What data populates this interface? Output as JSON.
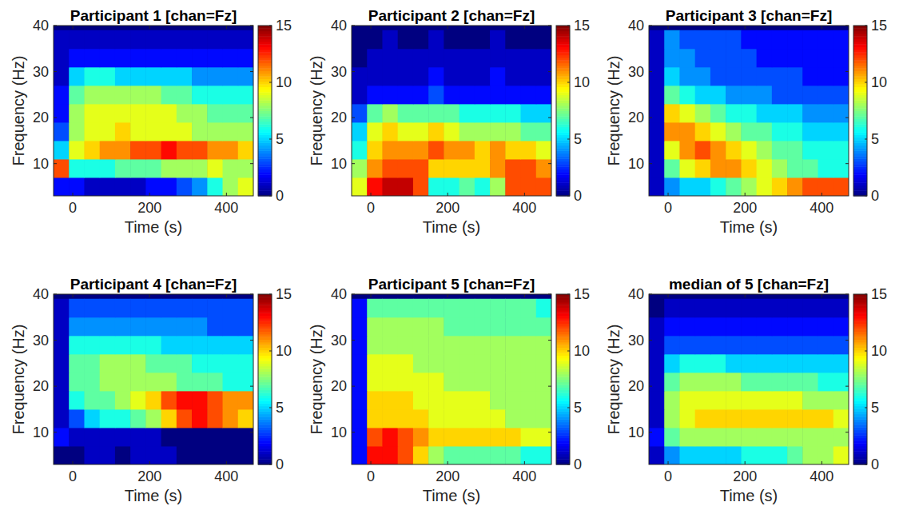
{
  "chart_data": [
    {
      "type": "heatmap",
      "title": "Participant 1 [chan=Fz]",
      "x_label": "Time (s)",
      "y_label": "Frequency (Hz)",
      "x": [
        -30,
        10,
        50,
        90,
        130,
        170,
        210,
        250,
        290,
        330,
        370,
        410,
        450
      ],
      "y": [
        5,
        9,
        13,
        17,
        21,
        25,
        29,
        33,
        37
      ],
      "values": [
        [
          2,
          2,
          1,
          1,
          1,
          1,
          2,
          2,
          3,
          4,
          6,
          8,
          9
        ],
        [
          12,
          6,
          6,
          6,
          7,
          7,
          7,
          8,
          8,
          8,
          9,
          8,
          8
        ],
        [
          5,
          9,
          10,
          11,
          11,
          12,
          12,
          13,
          12,
          12,
          11,
          11,
          10
        ],
        [
          3,
          8,
          9,
          9,
          10,
          9,
          9,
          9,
          9,
          8,
          8,
          8,
          8
        ],
        [
          2,
          8,
          9,
          9,
          9,
          9,
          9,
          9,
          8,
          8,
          7,
          7,
          7
        ],
        [
          2,
          7,
          8,
          8,
          8,
          8,
          8,
          7,
          7,
          6,
          6,
          6,
          6
        ],
        [
          1,
          5,
          6,
          6,
          5,
          5,
          5,
          5,
          5,
          4,
          4,
          4,
          4
        ],
        [
          1,
          2,
          2,
          2,
          2,
          2,
          2,
          2,
          2,
          2,
          2,
          2,
          2
        ],
        [
          1,
          1,
          1,
          1,
          1,
          1,
          1,
          1,
          1,
          1,
          1,
          1,
          1
        ]
      ],
      "xlim": [
        -50,
        470
      ],
      "ylim": [
        3,
        40
      ],
      "xticks": [
        0,
        200,
        400
      ],
      "yticks": [
        10,
        20,
        30,
        40
      ],
      "zlim": [
        0,
        15
      ],
      "zticks": [
        0,
        5,
        10,
        15
      ]
    },
    {
      "type": "heatmap",
      "title": "Participant 2 [chan=Fz]",
      "x_label": "Time (s)",
      "y_label": "Frequency (Hz)",
      "x": [
        -30,
        10,
        50,
        90,
        130,
        170,
        210,
        250,
        290,
        330,
        370,
        410,
        450
      ],
      "y": [
        5,
        9,
        13,
        17,
        21,
        25,
        29,
        33,
        37
      ],
      "values": [
        [
          9,
          13,
          14,
          14,
          12,
          6,
          6,
          7,
          6,
          8,
          12,
          12,
          12
        ],
        [
          8,
          11,
          12,
          12,
          12,
          10,
          10,
          10,
          10,
          11,
          12,
          12,
          11
        ],
        [
          6,
          10,
          11,
          11,
          11,
          12,
          11,
          11,
          10,
          11,
          10,
          10,
          9
        ],
        [
          5,
          9,
          10,
          9,
          9,
          10,
          9,
          8,
          8,
          8,
          8,
          7,
          7
        ],
        [
          3,
          7,
          8,
          7,
          7,
          7,
          7,
          6,
          6,
          6,
          6,
          5,
          5
        ],
        [
          1,
          2,
          2,
          2,
          2,
          3,
          2,
          2,
          2,
          2,
          2,
          2,
          2
        ],
        [
          1,
          1,
          1,
          1,
          1,
          2,
          1,
          1,
          1,
          2,
          1,
          1,
          1
        ],
        [
          0,
          1,
          1,
          1,
          1,
          1,
          1,
          1,
          1,
          1,
          1,
          1,
          1
        ],
        [
          0,
          0,
          1,
          0,
          0,
          1,
          0,
          0,
          0,
          1,
          0,
          0,
          0
        ]
      ],
      "xlim": [
        -50,
        470
      ],
      "ylim": [
        3,
        40
      ],
      "xticks": [
        0,
        200,
        400
      ],
      "yticks": [
        10,
        20,
        30,
        40
      ],
      "zlim": [
        0,
        15
      ],
      "zticks": [
        0,
        5,
        10,
        15
      ]
    },
    {
      "type": "heatmap",
      "title": "Participant 3 [chan=Fz]",
      "x_label": "Time (s)",
      "y_label": "Frequency (Hz)",
      "x": [
        -30,
        10,
        50,
        90,
        130,
        170,
        210,
        250,
        290,
        330,
        370,
        410,
        450
      ],
      "y": [
        5,
        9,
        13,
        17,
        21,
        25,
        29,
        33,
        37
      ],
      "values": [
        [
          1,
          4,
          5,
          5,
          6,
          7,
          8,
          9,
          10,
          11,
          12,
          12,
          12
        ],
        [
          1,
          7,
          9,
          10,
          11,
          11,
          10,
          9,
          8,
          7,
          7,
          6,
          6
        ],
        [
          1,
          9,
          11,
          12,
          11,
          10,
          9,
          8,
          7,
          7,
          6,
          6,
          6
        ],
        [
          1,
          11,
          11,
          10,
          9,
          8,
          7,
          7,
          6,
          6,
          5,
          5,
          5
        ],
        [
          1,
          10,
          9,
          8,
          7,
          6,
          6,
          5,
          5,
          5,
          4,
          4,
          4
        ],
        [
          1,
          7,
          6,
          5,
          5,
          4,
          4,
          4,
          3,
          3,
          3,
          3,
          3
        ],
        [
          1,
          5,
          4,
          4,
          3,
          3,
          3,
          3,
          3,
          3,
          2,
          2,
          2
        ],
        [
          1,
          4,
          4,
          3,
          3,
          3,
          3,
          2,
          2,
          2,
          2,
          2,
          2
        ],
        [
          1,
          4,
          3,
          3,
          3,
          3,
          2,
          2,
          2,
          2,
          2,
          2,
          2
        ]
      ],
      "xlim": [
        -50,
        470
      ],
      "ylim": [
        3,
        40
      ],
      "xticks": [
        0,
        200,
        400
      ],
      "yticks": [
        10,
        20,
        30,
        40
      ],
      "zlim": [
        0,
        15
      ],
      "zticks": [
        0,
        5,
        10,
        15
      ]
    },
    {
      "type": "heatmap",
      "title": "Participant 4 [chan=Fz]",
      "x_label": "Time (s)",
      "y_label": "Frequency (Hz)",
      "x": [
        -30,
        10,
        50,
        90,
        130,
        170,
        210,
        250,
        290,
        330,
        370,
        410,
        450
      ],
      "y": [
        5,
        9,
        13,
        17,
        21,
        25,
        29,
        33,
        37
      ],
      "values": [
        [
          0,
          0,
          1,
          1,
          0,
          1,
          1,
          1,
          0,
          0,
          0,
          0,
          0
        ],
        [
          2,
          1,
          1,
          1,
          1,
          1,
          1,
          0,
          0,
          0,
          0,
          0,
          0
        ],
        [
          1,
          3,
          5,
          6,
          6,
          7,
          8,
          10,
          12,
          13,
          12,
          11,
          10
        ],
        [
          1,
          6,
          7,
          7,
          8,
          9,
          10,
          12,
          13,
          13,
          12,
          11,
          11
        ],
        [
          1,
          7,
          7,
          8,
          8,
          8,
          8,
          8,
          7,
          7,
          7,
          6,
          6
        ],
        [
          1,
          7,
          7,
          8,
          8,
          8,
          7,
          7,
          7,
          6,
          6,
          6,
          6
        ],
        [
          1,
          6,
          6,
          6,
          6,
          6,
          6,
          5,
          5,
          5,
          5,
          5,
          5
        ],
        [
          1,
          4,
          4,
          4,
          4,
          4,
          4,
          4,
          4,
          4,
          3,
          3,
          3
        ],
        [
          1,
          3,
          3,
          3,
          3,
          3,
          3,
          3,
          3,
          3,
          3,
          3,
          3
        ]
      ],
      "xlim": [
        -50,
        470
      ],
      "ylim": [
        3,
        40
      ],
      "xticks": [
        0,
        200,
        400
      ],
      "yticks": [
        10,
        20,
        30,
        40
      ],
      "zlim": [
        0,
        15
      ],
      "zticks": [
        0,
        5,
        10,
        15
      ]
    },
    {
      "type": "heatmap",
      "title": "Participant 5 [chan=Fz]",
      "x_label": "Time (s)",
      "y_label": "Frequency (Hz)",
      "x": [
        -30,
        10,
        50,
        90,
        130,
        170,
        210,
        250,
        290,
        330,
        370,
        410,
        450
      ],
      "y": [
        5,
        9,
        13,
        17,
        21,
        25,
        29,
        33,
        37
      ],
      "values": [
        [
          2,
          13,
          13,
          12,
          10,
          8,
          7,
          7,
          7,
          7,
          7,
          6,
          6
        ],
        [
          2,
          12,
          13,
          12,
          11,
          10,
          10,
          10,
          10,
          10,
          10,
          9,
          9
        ],
        [
          2,
          10,
          10,
          10,
          10,
          9,
          9,
          9,
          9,
          9,
          8,
          8,
          8
        ],
        [
          2,
          10,
          10,
          10,
          9,
          9,
          9,
          9,
          9,
          8,
          8,
          8,
          8
        ],
        [
          2,
          9,
          9,
          9,
          9,
          9,
          8,
          8,
          8,
          8,
          8,
          8,
          8
        ],
        [
          2,
          9,
          9,
          9,
          8,
          8,
          8,
          8,
          8,
          8,
          8,
          8,
          8
        ],
        [
          2,
          8,
          8,
          8,
          8,
          8,
          8,
          8,
          8,
          8,
          8,
          8,
          8
        ],
        [
          2,
          8,
          8,
          8,
          8,
          8,
          7,
          7,
          7,
          7,
          7,
          7,
          7
        ],
        [
          2,
          7,
          7,
          7,
          7,
          7,
          7,
          7,
          7,
          7,
          7,
          7,
          6
        ]
      ],
      "xlim": [
        -50,
        470
      ],
      "ylim": [
        3,
        40
      ],
      "xticks": [
        0,
        200,
        400
      ],
      "yticks": [
        10,
        20,
        30,
        40
      ],
      "zlim": [
        0,
        15
      ],
      "zticks": [
        0,
        5,
        10,
        15
      ]
    },
    {
      "type": "heatmap",
      "title": "median of 5 [chan=Fz]",
      "x_label": "Time (s)",
      "y_label": "Frequency (Hz)",
      "x": [
        -30,
        10,
        50,
        90,
        130,
        170,
        210,
        250,
        290,
        330,
        370,
        410,
        450
      ],
      "y": [
        5,
        9,
        13,
        17,
        21,
        25,
        29,
        33,
        37
      ],
      "values": [
        [
          1,
          4,
          5,
          5,
          5,
          5,
          6,
          6,
          6,
          7,
          8,
          8,
          9
        ],
        [
          2,
          7,
          8,
          8,
          8,
          8,
          8,
          8,
          8,
          8,
          8,
          8,
          8
        ],
        [
          1,
          8,
          9,
          10,
          10,
          10,
          10,
          10,
          10,
          10,
          10,
          10,
          9
        ],
        [
          1,
          8,
          9,
          9,
          9,
          9,
          9,
          9,
          9,
          9,
          8,
          8,
          8
        ],
        [
          1,
          7,
          8,
          8,
          8,
          8,
          7,
          7,
          7,
          7,
          7,
          6,
          6
        ],
        [
          1,
          5,
          6,
          6,
          6,
          5,
          5,
          5,
          5,
          5,
          5,
          5,
          5
        ],
        [
          1,
          3,
          3,
          3,
          3,
          3,
          3,
          3,
          3,
          3,
          3,
          3,
          3
        ],
        [
          1,
          2,
          2,
          2,
          2,
          2,
          2,
          2,
          2,
          2,
          2,
          2,
          2
        ],
        [
          0,
          1,
          1,
          1,
          1,
          1,
          1,
          1,
          1,
          1,
          1,
          1,
          1
        ]
      ],
      "xlim": [
        -50,
        470
      ],
      "ylim": [
        3,
        40
      ],
      "xticks": [
        0,
        200,
        400
      ],
      "yticks": [
        10,
        20,
        30,
        40
      ],
      "zlim": [
        0,
        15
      ],
      "zticks": [
        0,
        5,
        10,
        15
      ]
    }
  ]
}
